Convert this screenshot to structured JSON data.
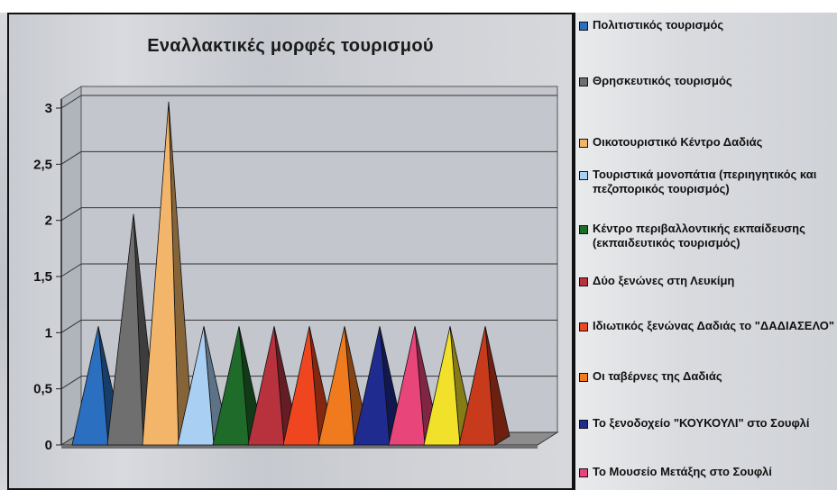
{
  "chart_data": {
    "type": "bar",
    "title": "Εναλλακτικές μορφές τουρισμού",
    "ylim": [
      0,
      3
    ],
    "yticks": [
      "0",
      "0,5",
      "1",
      "1,5",
      "2",
      "2,5",
      "3"
    ],
    "grid": true,
    "legend_position": "right",
    "series": [
      {
        "name": "Πολιτιστικός τουρισμός",
        "values": [
          1
        ],
        "color": "#2a6fc0"
      },
      {
        "name": "Θρησκευτικός τουρισμός",
        "values": [
          2
        ],
        "color": "#6f6f6f"
      },
      {
        "name": "Οικοτουριστικό Κέντρο Δαδιάς",
        "values": [
          3
        ],
        "color": "#f2b56a"
      },
      {
        "name": "Τουριστικά μονοπάτια (περιηγητικός και πεζοπορικός τουρισμός)",
        "values": [
          1
        ],
        "color": "#a9cff3"
      },
      {
        "name": "Κέντρο περιβαλλοντικής εκπαίδευσης (εκπαιδευτικός τουρισμός)",
        "values": [
          1
        ],
        "color": "#1f6b2a"
      },
      {
        "name": "Δύο ξενώνες στη Λευκίμη",
        "values": [
          1
        ],
        "color": "#b8323e"
      },
      {
        "name": "Ιδιωτικός ξενώνας Δαδιάς το \"ΔΑΔΙΑΣΕΛΟ\"",
        "values": [
          1
        ],
        "color": "#f0461f"
      },
      {
        "name": "Οι ταβέρνες της Δαδιάς",
        "values": [
          1
        ],
        "color": "#f07a1e"
      },
      {
        "name": "Το ξενοδοχείο \"ΚΟΥΚΟΥΛΙ\" στο Σουφλί",
        "values": [
          1
        ],
        "color": "#1f2b8f"
      },
      {
        "name": "Το Μουσείο Μετάξης στο Σουφλί",
        "values": [
          1
        ],
        "color": "#e8457a"
      },
      {
        "name": "",
        "values": [
          1
        ],
        "color": "#f2e12a"
      },
      {
        "name": "",
        "values": [
          1
        ],
        "color": "#c73a1c"
      }
    ]
  }
}
